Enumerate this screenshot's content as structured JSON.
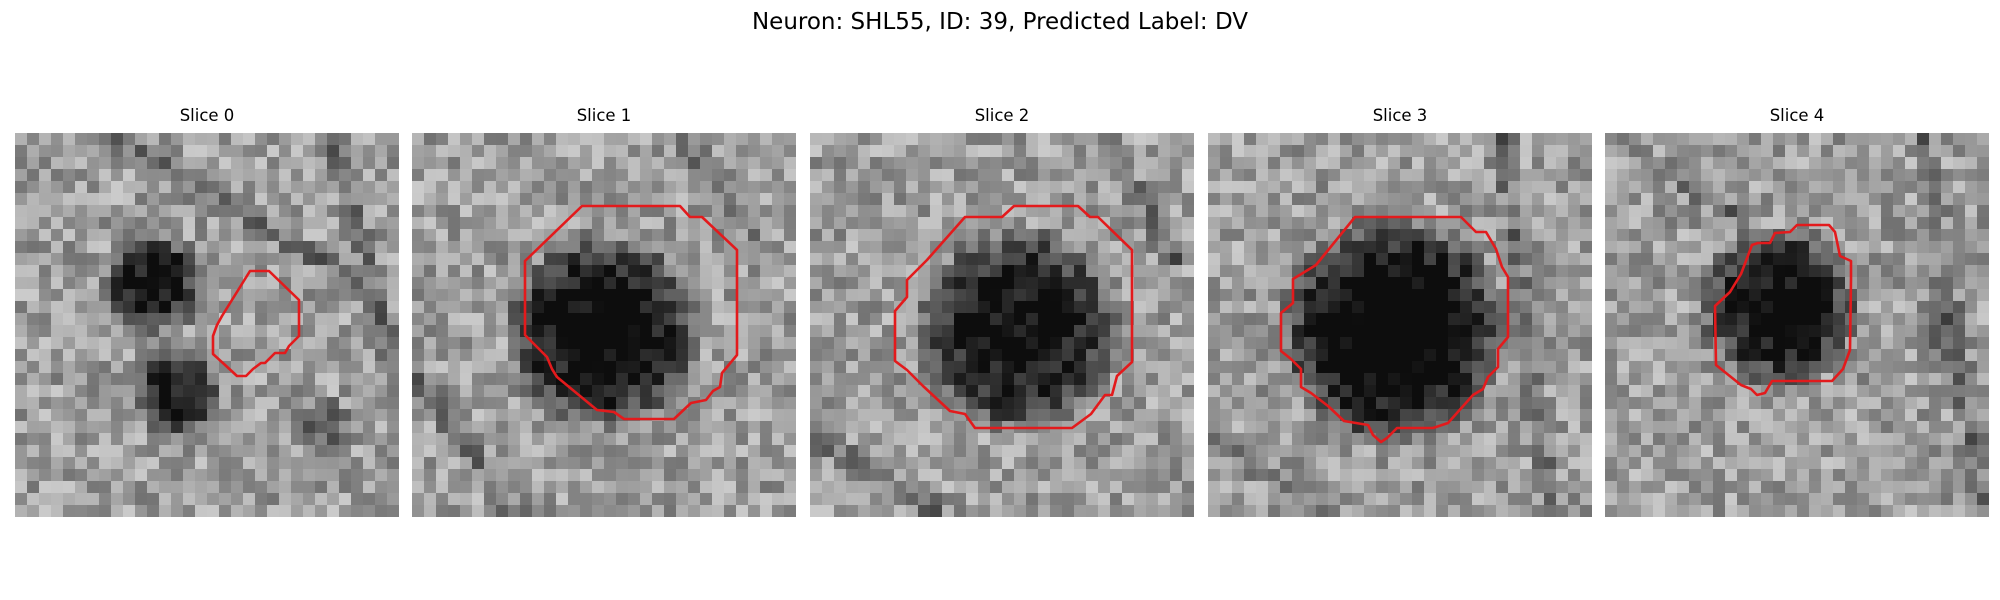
{
  "figure": {
    "title": "Neuron: SHL55, ID: 39, Predicted Label: DV"
  },
  "contour_color": "#e31a1c",
  "colormap": "gray",
  "panels": [
    {
      "title": "Slice 0"
    },
    {
      "title": "Slice 1"
    },
    {
      "title": "Slice 2"
    },
    {
      "title": "Slice 3"
    },
    {
      "title": "Slice 4"
    }
  ]
}
